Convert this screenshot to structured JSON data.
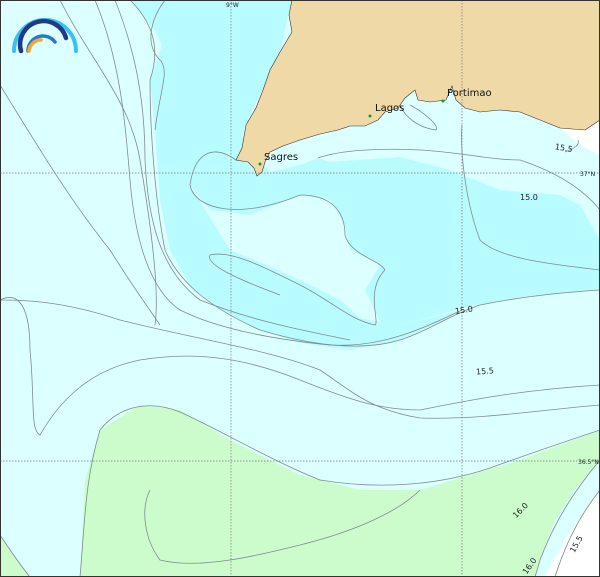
{
  "map": {
    "colors": {
      "land": "#efd9a6",
      "sea_cold": "#b8fcff",
      "sea_mid": "#dcffff",
      "sea_warm": "#ccfccc",
      "no_data": "#ffffff",
      "contour": "#7f8c8c",
      "city_marker": "#1a9a1a"
    },
    "grid_labels": {
      "lon": "9°W",
      "lat1": "37°N",
      "lat2": "36.5°N"
    },
    "cities": [
      {
        "name": "Sagres"
      },
      {
        "name": "Lagos"
      },
      {
        "name": "Portimao"
      }
    ],
    "contour_labels": [
      "15.5",
      "15.0",
      "15.0",
      "15.5",
      "16.0",
      "16.0",
      "15.5"
    ],
    "logo": "arc-logo-icon"
  }
}
